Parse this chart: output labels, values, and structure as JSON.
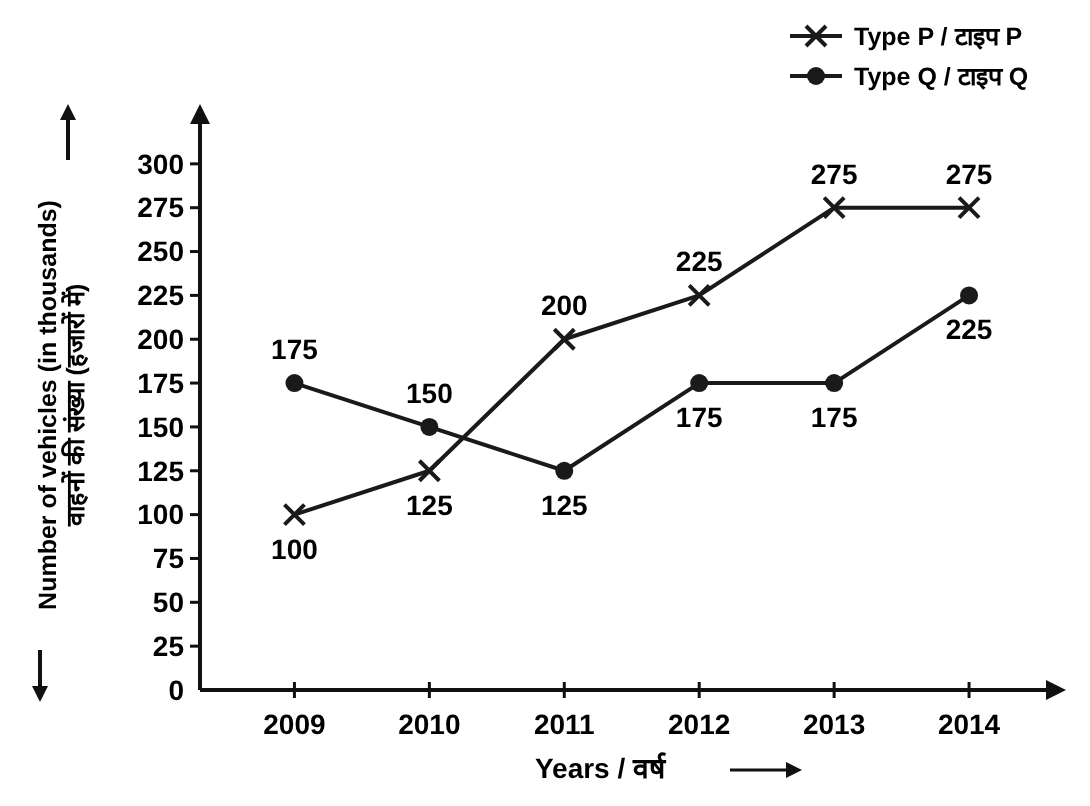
{
  "chart_data": {
    "type": "line",
    "xlabel": "Years / वर्ष",
    "ylabel": "Number of vehicles (in thousands)\nवाहनों की संख्या (हजारों में)",
    "categories": [
      "2009",
      "2010",
      "2011",
      "2012",
      "2013",
      "2014"
    ],
    "series": [
      {
        "name": "Type P / टाइप P",
        "color": "#1a1a1a",
        "marker": "cross",
        "values": [
          100,
          125,
          200,
          225,
          275,
          275
        ]
      },
      {
        "name": "Type Q / टाइप Q",
        "color": "#1a1a1a",
        "marker": "circle",
        "values": [
          175,
          150,
          125,
          175,
          175,
          225
        ]
      }
    ],
    "ylim": [
      0,
      325
    ],
    "yticks": [
      0,
      25,
      50,
      75,
      100,
      125,
      150,
      175,
      200,
      225,
      250,
      275,
      300
    ],
    "grid": false,
    "legend": "top right",
    "data_labels": true,
    "line_style": "solid"
  }
}
